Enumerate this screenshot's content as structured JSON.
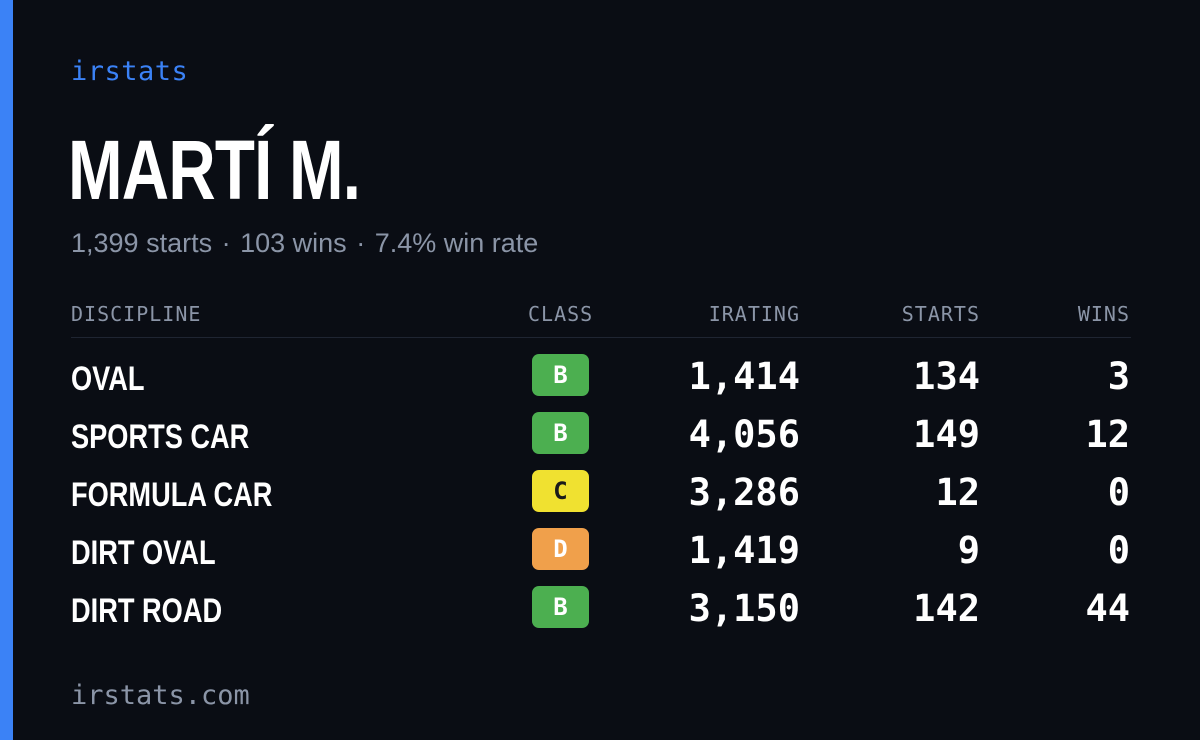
{
  "brand": "irstats",
  "driver": {
    "name": "MARTÍ M."
  },
  "summary": {
    "starts": "1,399 starts",
    "wins": "103 wins",
    "win_rate": "7.4% win rate",
    "separator": "·"
  },
  "table": {
    "headers": {
      "discipline": "DISCIPLINE",
      "class": "CLASS",
      "irating": "IRATING",
      "starts": "STARTS",
      "wins": "WINS"
    },
    "rows": [
      {
        "discipline": "OVAL",
        "class": "B",
        "irating": "1,414",
        "starts": "134",
        "wins": "3"
      },
      {
        "discipline": "SPORTS CAR",
        "class": "B",
        "irating": "4,056",
        "starts": "149",
        "wins": "12"
      },
      {
        "discipline": "FORMULA CAR",
        "class": "C",
        "irating": "3,286",
        "starts": "12",
        "wins": "0"
      },
      {
        "discipline": "DIRT OVAL",
        "class": "D",
        "irating": "1,419",
        "starts": "9",
        "wins": "0"
      },
      {
        "discipline": "DIRT ROAD",
        "class": "B",
        "irating": "3,150",
        "starts": "142",
        "wins": "44"
      }
    ]
  },
  "class_colors": {
    "B": {
      "bg": "#4caf50",
      "fg": "#ffffff"
    },
    "C": {
      "bg": "#f0e130",
      "fg": "#1a1a1a"
    },
    "D": {
      "bg": "#f0a04b",
      "fg": "#ffffff"
    }
  },
  "colors": {
    "accent": "#3b82f6",
    "background": "#0a0d14",
    "muted_text": "#8b95a7"
  },
  "footer": "irstats.com"
}
